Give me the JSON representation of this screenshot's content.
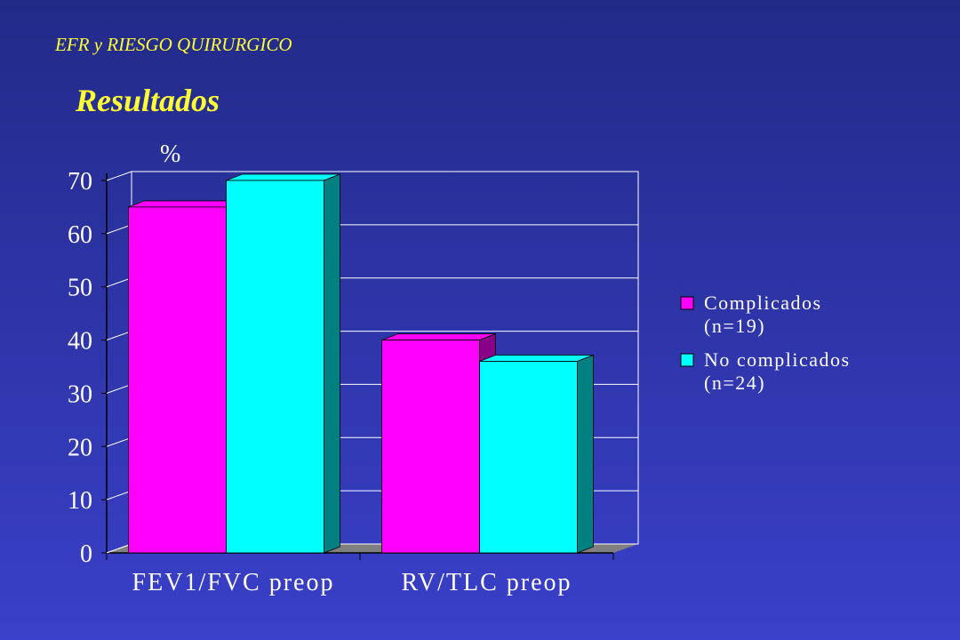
{
  "chart_data": {
    "type": "bar3d",
    "title": "EFR y RIESGO QUIRURGICO",
    "subtitle": "Resultados",
    "y_label": "%",
    "categories": [
      "FEV1/FVC preop",
      "RV/TLC preop"
    ],
    "series": [
      {
        "name": "Complicados (n=19)",
        "color": "#ff00ff",
        "values": [
          65,
          40
        ]
      },
      {
        "name": "No complicados (n=24)",
        "color": "#00ffff",
        "values": [
          70,
          36
        ]
      }
    ],
    "ylim": [
      0,
      70
    ],
    "yticks": [
      0,
      10,
      20,
      30,
      40,
      50,
      60,
      70
    ],
    "grid": true,
    "legend": "right"
  }
}
